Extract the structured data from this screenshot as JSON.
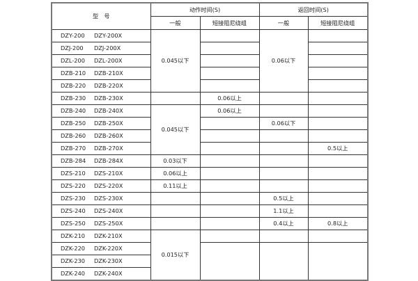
{
  "header": {
    "model": "型　号",
    "action_time": "动作时间(S)",
    "return_time": "返回时间(S)",
    "general": "一般",
    "short_damping": "短接阻尼绕组"
  },
  "rows": [
    {
      "a": "DZY-200",
      "b": "DZY-200X"
    },
    {
      "a": "DZJ-200",
      "b": "DZJ-200X"
    },
    {
      "a": "DZL-200",
      "b": "DZL-200X"
    },
    {
      "a": "DZB-210",
      "b": "DZB-210X"
    },
    {
      "a": "DZB-220",
      "b": "DZB-220X"
    },
    {
      "a": "DZB-230",
      "b": "DZB-230X"
    },
    {
      "a": "DZB-240",
      "b": "DZB-240X"
    },
    {
      "a": "DZB-250",
      "b": "DZB-250X"
    },
    {
      "a": "DZB-260",
      "b": "DZB-260X"
    },
    {
      "a": "DZB-270",
      "b": "DZB-270X"
    },
    {
      "a": "DZB-284",
      "b": "DZB-284X"
    },
    {
      "a": "DZS-210",
      "b": "DZS-210X"
    },
    {
      "a": "DZS-220",
      "b": "DZS-220X"
    },
    {
      "a": "DZS-230",
      "b": "DZS-230X"
    },
    {
      "a": "DZS-240",
      "b": "DZS-240X"
    },
    {
      "a": "DZS-250",
      "b": "DZS-250X"
    },
    {
      "a": "DZK-210",
      "b": "DZK-210X"
    },
    {
      "a": "DZK-220",
      "b": "DZK-220X"
    },
    {
      "a": "DZK-230",
      "b": "DZK-230X"
    },
    {
      "a": "DZK-240",
      "b": "DZK-240X"
    }
  ],
  "columns": {
    "action_general": [
      {
        "rows": 5,
        "text": "0.045以下"
      },
      {
        "rows": 1,
        "text": ""
      },
      {
        "rows": 4,
        "text": "0.045以下"
      },
      {
        "rows": 1,
        "text": "0.03以下"
      },
      {
        "rows": 1,
        "text": "0.06以上"
      },
      {
        "rows": 1,
        "text": "0.11以上"
      },
      {
        "rows": 1,
        "text": ""
      },
      {
        "rows": 1,
        "text": ""
      },
      {
        "rows": 1,
        "text": ""
      },
      {
        "rows": 4,
        "text": "0.015以下"
      }
    ],
    "action_short": [
      {
        "rows": 1,
        "text": ""
      },
      {
        "rows": 1,
        "text": ""
      },
      {
        "rows": 1,
        "text": ""
      },
      {
        "rows": 1,
        "text": ""
      },
      {
        "rows": 1,
        "text": ""
      },
      {
        "rows": 1,
        "text": "0.06以上"
      },
      {
        "rows": 1,
        "text": "0.06以上"
      },
      {
        "rows": 1,
        "text": ""
      },
      {
        "rows": 1,
        "text": ""
      },
      {
        "rows": 1,
        "text": ""
      },
      {
        "rows": 1,
        "text": ""
      },
      {
        "rows": 1,
        "text": ""
      },
      {
        "rows": 1,
        "text": ""
      },
      {
        "rows": 1,
        "text": ""
      },
      {
        "rows": 1,
        "text": ""
      },
      {
        "rows": 1,
        "text": ""
      },
      {
        "rows": 1,
        "text": ""
      },
      {
        "rows": 3,
        "text": ""
      }
    ],
    "return_general": [
      {
        "rows": 5,
        "text": "0.06以下"
      },
      {
        "rows": 1,
        "text": ""
      },
      {
        "rows": 1,
        "text": ""
      },
      {
        "rows": 1,
        "text": "0.06以下"
      },
      {
        "rows": 1,
        "text": ""
      },
      {
        "rows": 1,
        "text": ""
      },
      {
        "rows": 1,
        "text": ""
      },
      {
        "rows": 1,
        "text": ""
      },
      {
        "rows": 1,
        "text": ""
      },
      {
        "rows": 1,
        "text": "0.5以上"
      },
      {
        "rows": 1,
        "text": "1.1以上"
      },
      {
        "rows": 1,
        "text": "0.4以上"
      },
      {
        "rows": 1,
        "text": ""
      },
      {
        "rows": 3,
        "text": ""
      }
    ],
    "return_short": [
      {
        "rows": 1,
        "text": ""
      },
      {
        "rows": 1,
        "text": ""
      },
      {
        "rows": 1,
        "text": ""
      },
      {
        "rows": 1,
        "text": ""
      },
      {
        "rows": 1,
        "text": ""
      },
      {
        "rows": 1,
        "text": ""
      },
      {
        "rows": 1,
        "text": ""
      },
      {
        "rows": 1,
        "text": ""
      },
      {
        "rows": 1,
        "text": ""
      },
      {
        "rows": 1,
        "text": "0.5以上"
      },
      {
        "rows": 1,
        "text": ""
      },
      {
        "rows": 1,
        "text": ""
      },
      {
        "rows": 1,
        "text": ""
      },
      {
        "rows": 1,
        "text": ""
      },
      {
        "rows": 1,
        "text": ""
      },
      {
        "rows": 1,
        "text": "0.8以上"
      },
      {
        "rows": 1,
        "text": ""
      },
      {
        "rows": 3,
        "text": ""
      }
    ]
  }
}
